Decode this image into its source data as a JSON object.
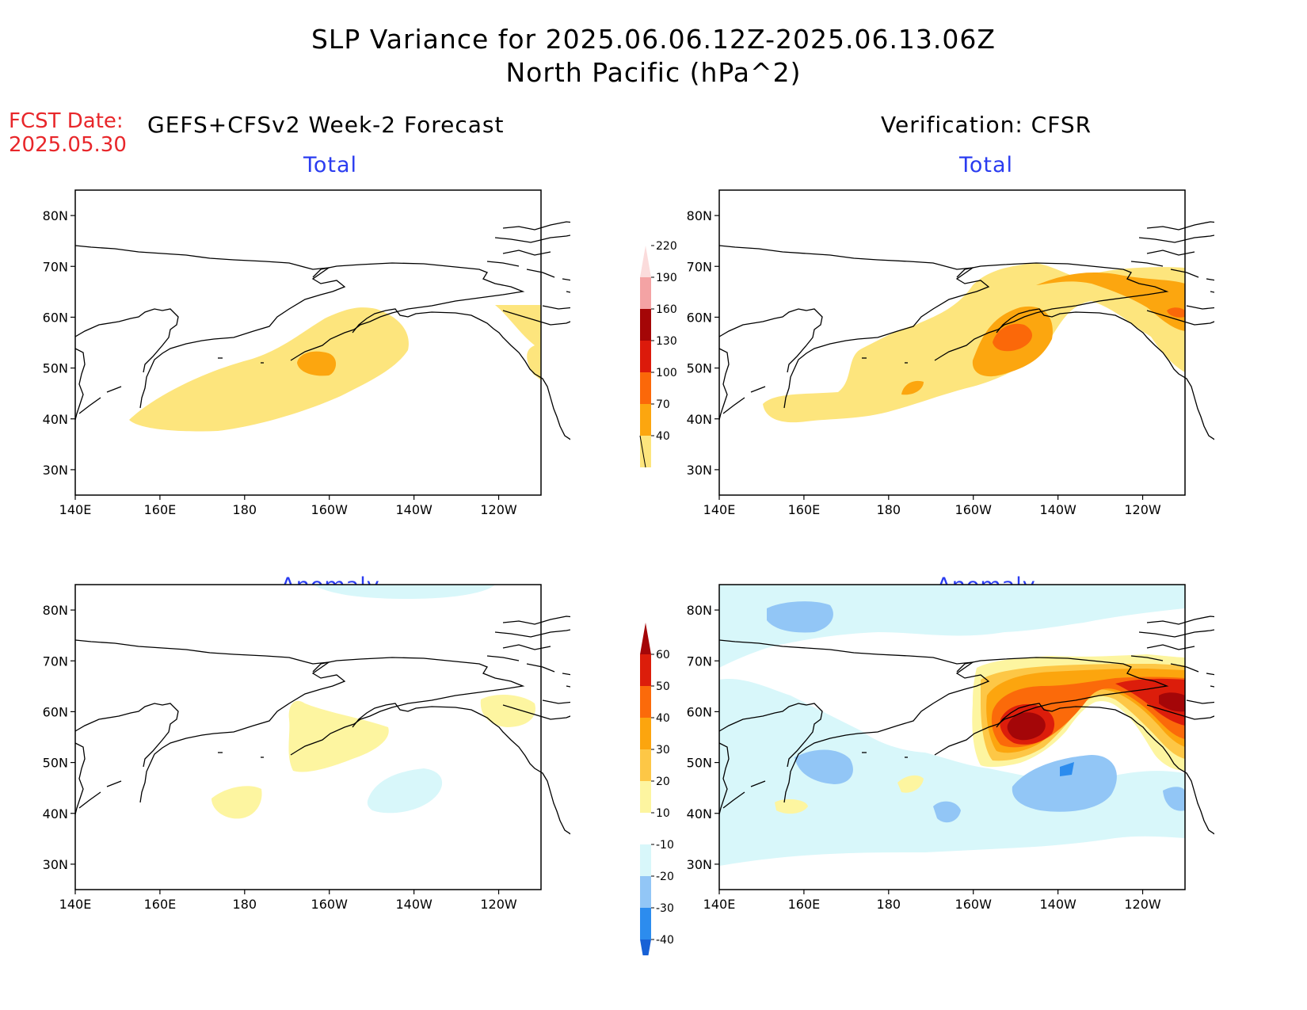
{
  "title": {
    "line1": "SLP Variance for 2025.06.06.12Z-2025.06.13.06Z",
    "line2": "North Pacific (hPa^2)"
  },
  "fcst": {
    "label": "FCST Date:",
    "date": "2025.05.30"
  },
  "columns": {
    "left": "GEFS+CFSv2 Week-2 Forecast",
    "right": "Verification: CFSR"
  },
  "panels": {
    "fcst_total": {
      "subtitle": "Total"
    },
    "obs_total": {
      "subtitle": "Total"
    },
    "fcst_anom": {
      "subtitle": "Anomaly"
    },
    "obs_anom": {
      "subtitle": "Anomaly"
    }
  },
  "map": {
    "lon_ticks": [
      "140E",
      "160E",
      "180",
      "160W",
      "140W",
      "120W"
    ],
    "lat_ticks": [
      "80N",
      "70N",
      "60N",
      "50N",
      "40N",
      "30N"
    ],
    "lon_range": [
      140,
      250
    ],
    "lat_range": [
      25,
      85
    ]
  },
  "colorbars": {
    "total": {
      "labels": [
        "40",
        "70",
        "100",
        "130",
        "160",
        "190",
        "220"
      ],
      "colors": [
        "#fde57d",
        "#fca60f",
        "#fb6809",
        "#dc1a0b",
        "#a40607",
        "#f4a3a4",
        "#fbdcdc"
      ]
    },
    "anomaly": {
      "labels": [
        "-40",
        "-30",
        "-20",
        "-10",
        "10",
        "20",
        "30",
        "40",
        "50",
        "60"
      ],
      "colors": [
        "#1861d6",
        "#2c8cee",
        "#92c6f6",
        "#d8f7fa",
        "#ffffff",
        "#fdf5a0",
        "#fdc746",
        "#fca50e",
        "#fb6a0a",
        "#dc1d0b",
        "#a40608"
      ]
    }
  }
}
